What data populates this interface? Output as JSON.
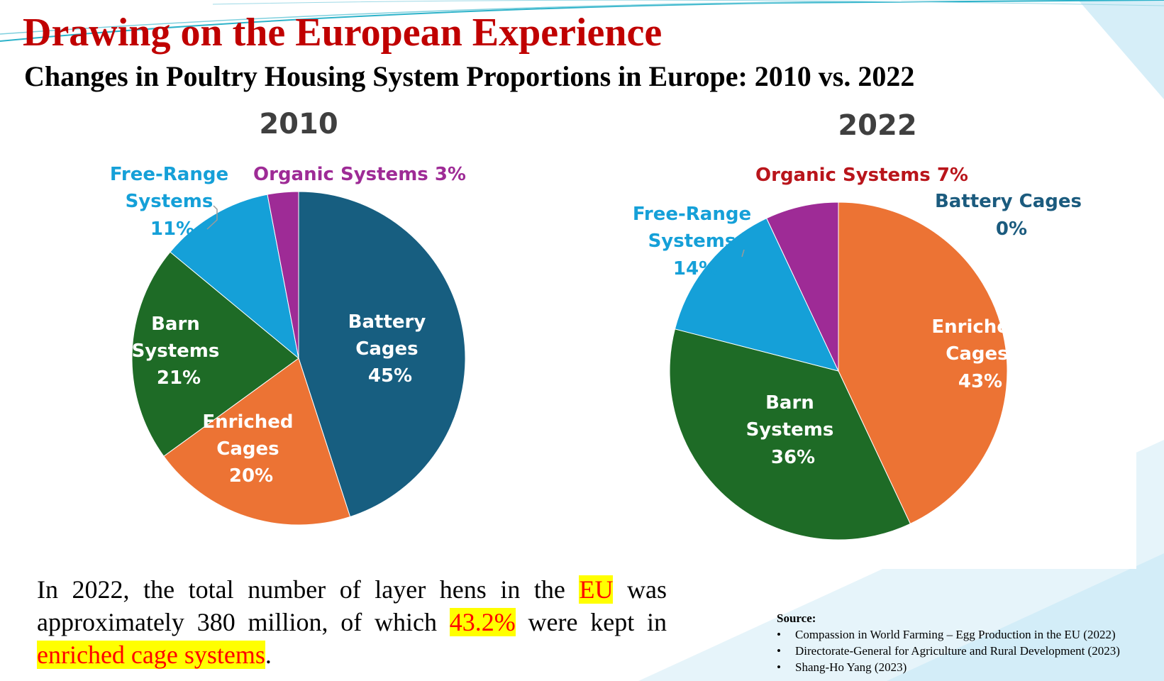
{
  "title": "Drawing on the European Experience",
  "subtitle": "Changes in Poultry Housing System Proportions in Europe: 2010 vs. 2022",
  "colors": {
    "battery": "#175e80",
    "enriched": "#ec7334",
    "barn": "#1e6b26",
    "free_range": "#15a0d8",
    "organic": "#9e2b96",
    "title_red": "#c00000",
    "highlight_yellow": "#ffff00",
    "label_dark_gray": "#3f3f3f",
    "label_navy": "#1b5b7e",
    "label_crimson": "#b9151b"
  },
  "chart_data": [
    {
      "type": "pie",
      "title": "2010",
      "categories": [
        "Battery Cages",
        "Enriched Cages",
        "Barn Systems",
        "Free-Range Systems",
        "Organic Systems"
      ],
      "values": [
        45,
        20,
        21,
        11,
        3
      ],
      "unit": "%",
      "labels": [
        {
          "lines": [
            "Battery",
            "Cages",
            "45%"
          ]
        },
        {
          "lines": [
            "Enriched",
            "Cages",
            "20%"
          ]
        },
        {
          "lines": [
            "Barn",
            "Systems",
            "21%"
          ]
        },
        {
          "lines": [
            "Free-Range",
            "Systems",
            "11%"
          ]
        },
        {
          "lines": [
            "Organic Systems 3%"
          ]
        }
      ]
    },
    {
      "type": "pie",
      "title": "2022",
      "categories": [
        "Battery Cages",
        "Enriched Cages",
        "Barn Systems",
        "Free-Range Systems",
        "Organic Systems"
      ],
      "values": [
        0,
        43,
        36,
        14,
        7
      ],
      "unit": "%",
      "labels": [
        {
          "lines": [
            "Battery Cages",
            "0%"
          ]
        },
        {
          "lines": [
            "Enriched",
            "Cages",
            "43%"
          ]
        },
        {
          "lines": [
            "Barn",
            "Systems",
            "36%"
          ]
        },
        {
          "lines": [
            "Free-Range",
            "Systems",
            "14%"
          ]
        },
        {
          "lines": [
            "Organic Systems 7%"
          ]
        }
      ]
    }
  ],
  "body": {
    "t1": "In 2022, the total number of layer hens in the ",
    "eu": "EU",
    "t2": " was approximately 380 million, of which ",
    "pct": "43.2%",
    "t3": " were kept in ",
    "enriched": "enriched cage systems",
    "t4": "."
  },
  "source": {
    "title": "Source:",
    "items": [
      "Compassion in World Farming – Egg Production in the EU (2022)",
      "Directorate-General for Agriculture and Rural Development (2023)",
      "Shang-Ho Yang (2023)"
    ]
  }
}
